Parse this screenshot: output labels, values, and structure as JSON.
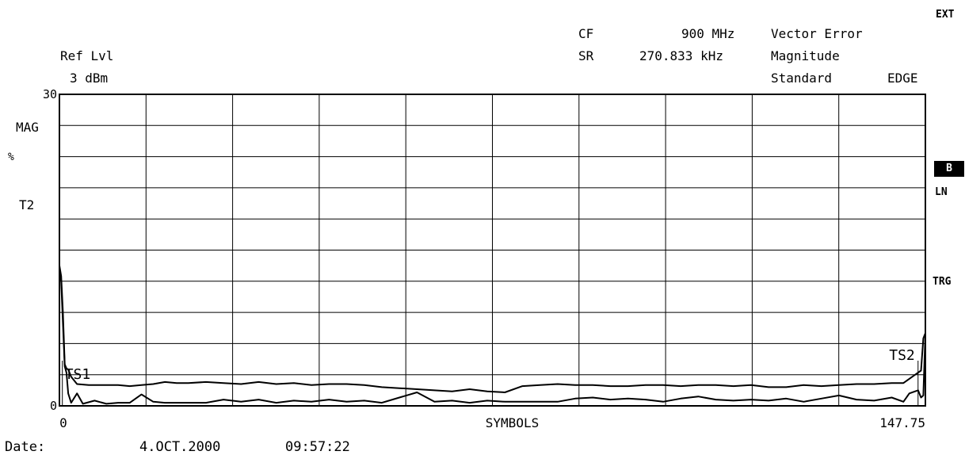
{
  "header": {
    "ext": "EXT",
    "cf_label": "CF",
    "cf_value": "900 MHz",
    "sr_label": "SR",
    "sr_value": "270.833 kHz",
    "title_line1": "Vector Error",
    "title_line2": "Magnitude",
    "standard_label": "Standard",
    "standard_value": "EDGE",
    "ref_lvl_label": "Ref Lvl",
    "ref_lvl_value": "3 dBm"
  },
  "left_annotations": {
    "mag": "MAG",
    "unit": "%",
    "trace": "T2"
  },
  "right_annotations": {
    "b_badge": "B",
    "ln": "LN",
    "trg": "TRG"
  },
  "footer": {
    "date_label": "Date:",
    "date_value": "4.OCT.2000",
    "time_value": "09:57:22"
  },
  "chart_data": {
    "type": "line",
    "xlabel": "SYMBOLS",
    "ylim": [
      0,
      30
    ],
    "xlim": [
      0,
      147.75
    ],
    "y_tick_labels": [
      "30",
      "0"
    ],
    "x_tick_labels": [
      "0",
      "147.75"
    ],
    "grid": true,
    "markers": [
      {
        "label": "TS1",
        "x": 0.5
      },
      {
        "label": "TS2",
        "x": 146.5
      }
    ],
    "series": [
      {
        "x": [
          0,
          0.3,
          0.6,
          0.9,
          1.2,
          1.5,
          2,
          3,
          5,
          8,
          10,
          12,
          14,
          16,
          18,
          20,
          22,
          25,
          28,
          31,
          34,
          37,
          40,
          43,
          46,
          49,
          52,
          55,
          58,
          61,
          64,
          67,
          70,
          73,
          76,
          79,
          82,
          85,
          88,
          91,
          94,
          97,
          100,
          103,
          106,
          109,
          112,
          115,
          118,
          121,
          124,
          127,
          130,
          133,
          136,
          139,
          142,
          144,
          145,
          146,
          146.5,
          147,
          147.4,
          147.75
        ],
        "y": [
          13.5,
          12.5,
          9,
          4,
          3.6,
          3.5,
          2.8,
          2.1,
          2.0,
          2.0,
          2.0,
          1.9,
          2.0,
          2.1,
          2.3,
          2.2,
          2.2,
          2.3,
          2.2,
          2.1,
          2.3,
          2.1,
          2.2,
          2.0,
          2.1,
          2.1,
          2.0,
          1.8,
          1.7,
          1.6,
          1.5,
          1.4,
          1.6,
          1.4,
          1.3,
          1.9,
          2.0,
          2.1,
          2.0,
          2.0,
          1.9,
          1.9,
          2.0,
          2.0,
          1.9,
          2.0,
          2.0,
          1.9,
          2.0,
          1.8,
          1.8,
          2.0,
          1.9,
          2.0,
          2.1,
          2.1,
          2.2,
          2.2,
          2.6,
          3.0,
          3.2,
          3.4,
          6.5,
          7.0
        ]
      },
      {
        "x": [
          0,
          0.3,
          0.6,
          0.9,
          1.2,
          1.5,
          2,
          3,
          4,
          6,
          8,
          10,
          12,
          14,
          16,
          18,
          20,
          22,
          25,
          28,
          31,
          34,
          37,
          40,
          43,
          46,
          49,
          52,
          55,
          58,
          61,
          64,
          67,
          70,
          73,
          76,
          79,
          82,
          85,
          88,
          91,
          94,
          97,
          100,
          103,
          106,
          109,
          112,
          115,
          118,
          121,
          124,
          127,
          130,
          133,
          136,
          139,
          142,
          144,
          145,
          146,
          146.5,
          147,
          147.4,
          147.75
        ],
        "y": [
          13.0,
          12.0,
          8.0,
          3.8,
          3.2,
          1.2,
          0.3,
          1.2,
          0.2,
          0.5,
          0.2,
          0.3,
          0.3,
          1.1,
          0.4,
          0.3,
          0.3,
          0.3,
          0.3,
          0.6,
          0.4,
          0.6,
          0.3,
          0.5,
          0.4,
          0.6,
          0.4,
          0.5,
          0.3,
          0.8,
          1.3,
          0.4,
          0.5,
          0.3,
          0.5,
          0.4,
          0.4,
          0.4,
          0.4,
          0.7,
          0.8,
          0.6,
          0.7,
          0.6,
          0.4,
          0.7,
          0.9,
          0.6,
          0.5,
          0.6,
          0.5,
          0.7,
          0.4,
          0.7,
          1.0,
          0.6,
          0.5,
          0.8,
          0.4,
          1.2,
          1.4,
          1.5,
          0.8,
          1.0,
          7.0
        ]
      }
    ]
  }
}
